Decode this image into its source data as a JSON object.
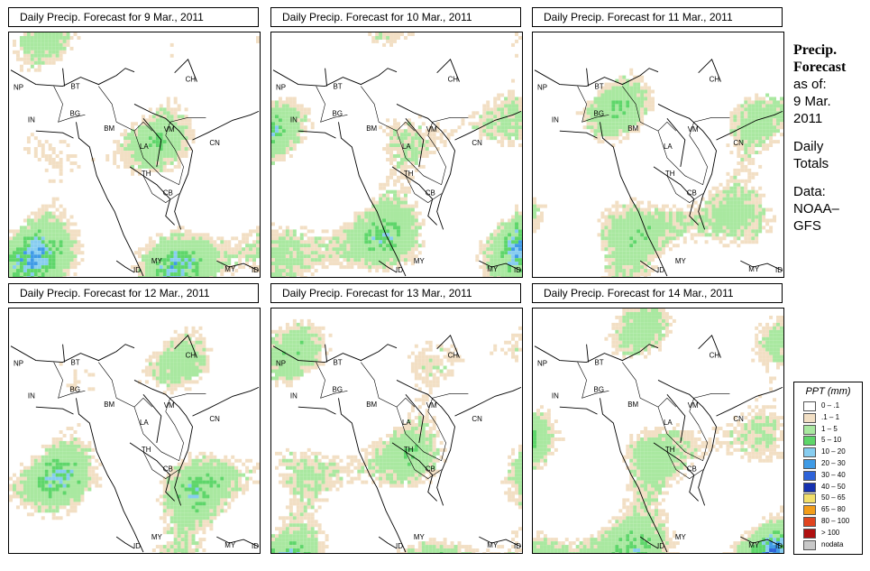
{
  "panels": [
    {
      "title": "Daily Precip. Forecast for  9 Mar., 2011",
      "pattern": 0
    },
    {
      "title": "Daily Precip. Forecast for  10 Mar., 2011",
      "pattern": 1
    },
    {
      "title": "Daily Precip. Forecast for  11 Mar., 2011",
      "pattern": 2
    },
    {
      "title": "Daily Precip. Forecast for  12 Mar., 2011",
      "pattern": 3
    },
    {
      "title": "Daily Precip. Forecast for  13 Mar., 2011",
      "pattern": 4
    },
    {
      "title": "Daily Precip. Forecast for  14 Mar., 2011",
      "pattern": 5
    }
  ],
  "country_labels": [
    "NP",
    "BT",
    "BG",
    "IN",
    "BM",
    "CH",
    "VM",
    "CN",
    "LA",
    "TH",
    "CB",
    "MY",
    "ID",
    "MY",
    "ID"
  ],
  "sidebar": {
    "header_line1": "Precip.",
    "header_line2": "Forecast",
    "asof_label": "as of:",
    "date_line1": "9 Mar.",
    "date_line2": "2011",
    "totals_line1": "Daily",
    "totals_line2": "Totals",
    "data_line1": "Data:",
    "data_line2": "NOAA–",
    "data_line3": "GFS"
  },
  "legend": {
    "title": "PPT (mm)",
    "items": [
      {
        "label": "0 – .1",
        "color": "#ffffff"
      },
      {
        "label": ".1 – 1",
        "color": "#f2dfc4"
      },
      {
        "label": "1 – 5",
        "color": "#a9e8a0"
      },
      {
        "label": "5 – 10",
        "color": "#5ed66a"
      },
      {
        "label": "10 – 20",
        "color": "#87cdf0"
      },
      {
        "label": "20 – 30",
        "color": "#3f9be6"
      },
      {
        "label": "30 – 40",
        "color": "#2e63d9"
      },
      {
        "label": "40 – 50",
        "color": "#1531b0"
      },
      {
        "label": "50 – 65",
        "color": "#f2df6b"
      },
      {
        "label": "65 – 80",
        "color": "#f29d1a"
      },
      {
        "label": "80 – 100",
        "color": "#e0441f"
      },
      {
        "label": "> 100",
        "color": "#b01010"
      },
      {
        "label": "nodata",
        "color": "#c8c8c8"
      }
    ]
  }
}
